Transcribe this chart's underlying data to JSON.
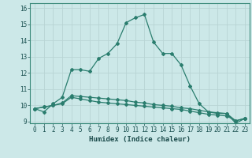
{
  "xlabel": "Humidex (Indice chaleur)",
  "bg_color": "#cce8e8",
  "line_color": "#2a7d6e",
  "grid_color": "#b8d4d4",
  "x": [
    0,
    1,
    2,
    3,
    4,
    5,
    6,
    7,
    8,
    9,
    10,
    11,
    12,
    13,
    14,
    15,
    16,
    17,
    18,
    19,
    20,
    21,
    22,
    23
  ],
  "series1": [
    9.8,
    9.6,
    10.1,
    10.5,
    12.2,
    12.2,
    12.1,
    12.9,
    13.2,
    13.8,
    15.1,
    15.4,
    15.6,
    13.9,
    13.2,
    13.2,
    12.5,
    11.2,
    10.1,
    9.6,
    9.5,
    9.5,
    8.9,
    9.2
  ],
  "series2": [
    9.8,
    9.9,
    10.0,
    10.1,
    10.5,
    10.4,
    10.3,
    10.2,
    10.15,
    10.1,
    10.05,
    10.0,
    9.95,
    9.9,
    9.85,
    9.8,
    9.75,
    9.65,
    9.55,
    9.45,
    9.4,
    9.35,
    9.05,
    9.2
  ],
  "series3": [
    9.8,
    9.9,
    10.0,
    10.15,
    10.6,
    10.55,
    10.5,
    10.45,
    10.4,
    10.35,
    10.3,
    10.2,
    10.15,
    10.05,
    10.0,
    9.95,
    9.85,
    9.8,
    9.7,
    9.6,
    9.55,
    9.5,
    9.05,
    9.2
  ],
  "ylim_min": 8.9,
  "ylim_max": 16.3,
  "xlim_min": -0.5,
  "xlim_max": 23.5,
  "yticks": [
    9,
    10,
    11,
    12,
    13,
    14,
    15,
    16
  ],
  "xticks": [
    0,
    1,
    2,
    3,
    4,
    5,
    6,
    7,
    8,
    9,
    10,
    11,
    12,
    13,
    14,
    15,
    16,
    17,
    18,
    19,
    20,
    21,
    22,
    23
  ],
  "tick_fontsize": 5.5,
  "xlabel_fontsize": 6.5
}
